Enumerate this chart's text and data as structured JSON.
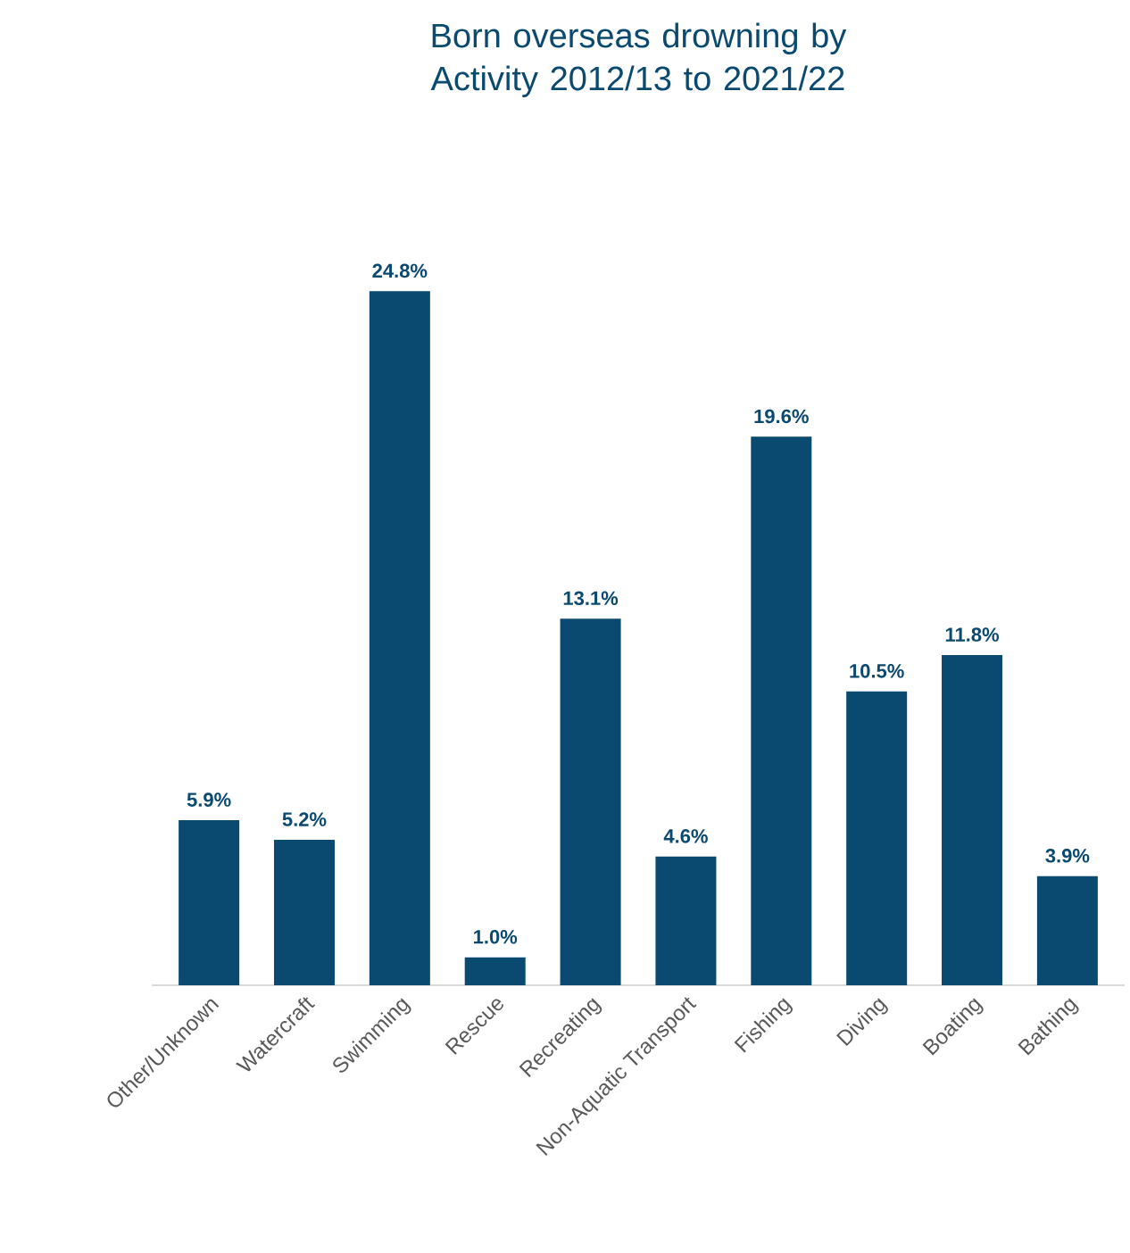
{
  "chart_data": {
    "type": "bar",
    "title": "Born overseas drowning by Activity 2012/13 to 2021/22",
    "categories": [
      "Other/Unknown",
      "Watercraft",
      "Swimming",
      "Rescue",
      "Recreating",
      "Non-Aquatic Transport",
      "Fishing",
      "Diving",
      "Boating",
      "Bathing"
    ],
    "values": [
      5.9,
      5.2,
      24.8,
      1.0,
      13.1,
      4.6,
      19.6,
      10.5,
      11.8,
      3.9
    ],
    "value_labels": [
      "5.9%",
      "5.2%",
      "24.8%",
      "1.0%",
      "13.1%",
      "4.6%",
      "19.6%",
      "10.5%",
      "11.8%",
      "3.9%"
    ],
    "color": "#0b4a70"
  }
}
